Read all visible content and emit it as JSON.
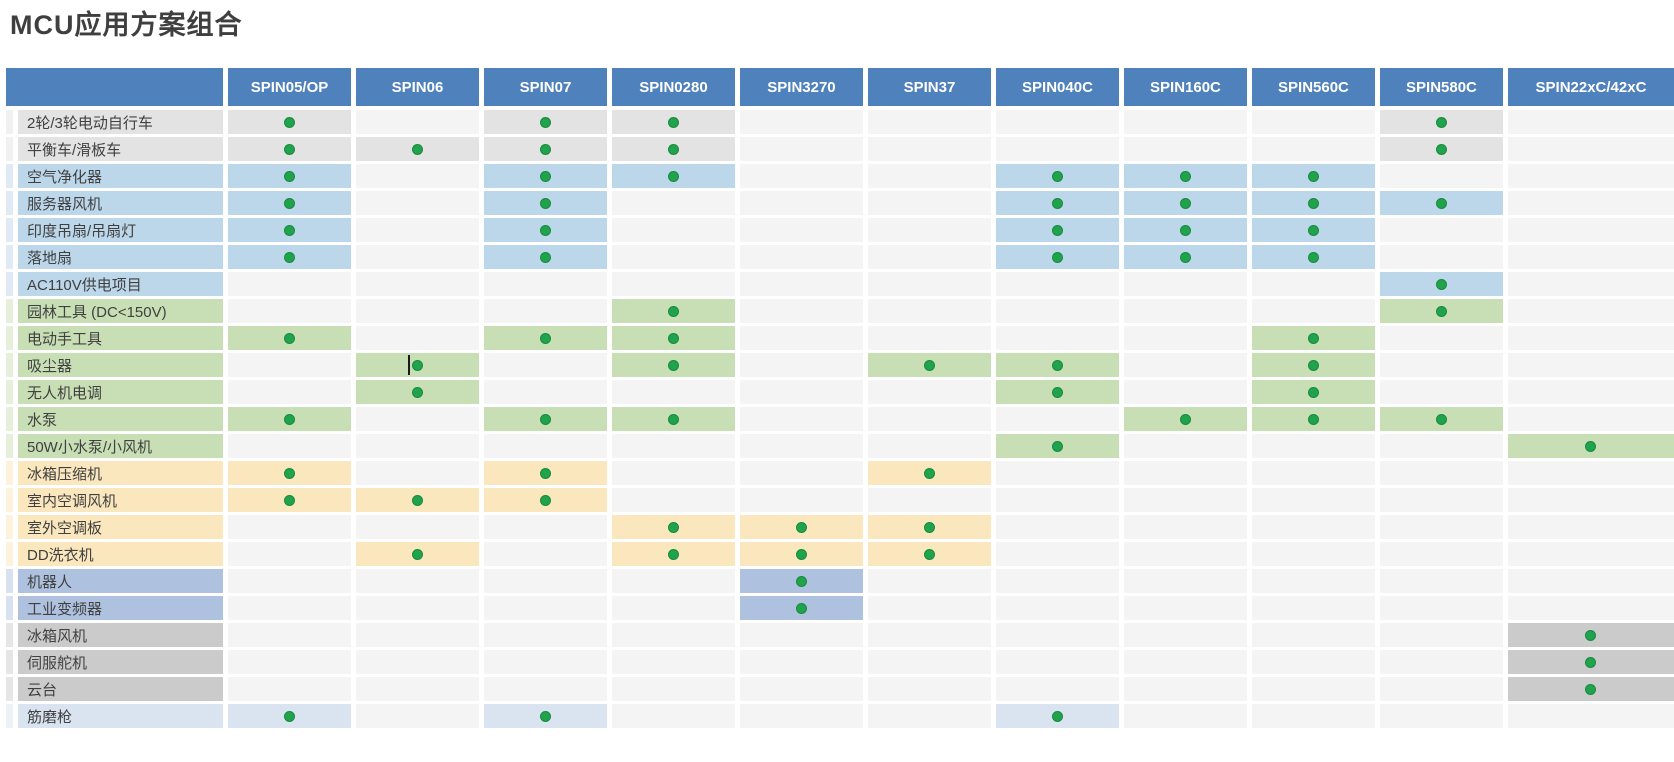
{
  "page_title": "MCU应用方案组合",
  "colors": {
    "header_bg": "#4f81bd",
    "header_text": "#ffffff",
    "cell_default": "#f4f4f4",
    "dot_green": "#21a24c",
    "dot_edge": "#178b3f",
    "title_text": "#3f3f3f",
    "categories": {
      "gray": {
        "main": "#e3e3e3",
        "tint": "#f1f1f1"
      },
      "blue": {
        "main": "#bcd6ea",
        "tint": "#dfeaf4"
      },
      "green": {
        "main": "#c8dfb5",
        "tint": "#e5efdb"
      },
      "yellow": {
        "main": "#fbe7bd",
        "tint": "#fdf3dd"
      },
      "periwinkle": {
        "main": "#aec2e0",
        "tint": "#d8e1ef"
      },
      "darkgray": {
        "main": "#cbcbcb",
        "tint": "#e6e6e6"
      },
      "lightblue": {
        "main": "#d9e4f0",
        "tint": "#edf2f8"
      }
    }
  },
  "table": {
    "columns": [
      "SPIN05/OP",
      "SPIN06",
      "SPIN07",
      "SPIN0280",
      "SPIN3270",
      "SPIN37",
      "SPIN040C",
      "SPIN160C",
      "SPIN560C",
      "SPIN580C",
      "SPIN22xC/42xC"
    ],
    "rows": [
      {
        "label": "2轮/3轮电动自行车",
        "category": "gray",
        "dots": [
          0,
          2,
          3,
          9
        ]
      },
      {
        "label": "平衡车/滑板车",
        "category": "gray",
        "dots": [
          0,
          1,
          2,
          3,
          9
        ]
      },
      {
        "label": "空气净化器",
        "category": "blue",
        "dots": [
          0,
          2,
          3,
          6,
          7,
          8
        ]
      },
      {
        "label": "服务器风机",
        "category": "blue",
        "dots": [
          0,
          2,
          6,
          7,
          8,
          9
        ]
      },
      {
        "label": "印度吊扇/吊扇灯",
        "category": "blue",
        "dots": [
          0,
          2,
          6,
          7,
          8
        ]
      },
      {
        "label": "落地扇",
        "category": "blue",
        "dots": [
          0,
          2,
          6,
          7,
          8
        ]
      },
      {
        "label": "AC110V供电项目",
        "category": "blue",
        "dots": [
          9
        ]
      },
      {
        "label": "园林工具 (DC<150V)",
        "category": "green",
        "dots": [
          3,
          9
        ]
      },
      {
        "label": "电动手工具",
        "category": "green",
        "dots": [
          0,
          2,
          3,
          8
        ]
      },
      {
        "label": "吸尘器",
        "category": "green",
        "dots": [
          1,
          3,
          5,
          6,
          8
        ],
        "caret_col": 1
      },
      {
        "label": "无人机电调",
        "category": "green",
        "dots": [
          1,
          6,
          8
        ]
      },
      {
        "label": "水泵",
        "category": "green",
        "dots": [
          0,
          2,
          3,
          7,
          8,
          9
        ]
      },
      {
        "label": "50W小水泵/小风机",
        "category": "green",
        "dots": [
          6,
          10
        ]
      },
      {
        "label": "冰箱压缩机",
        "category": "yellow",
        "dots": [
          0,
          2,
          5
        ]
      },
      {
        "label": "室内空调风机",
        "category": "yellow",
        "dots": [
          0,
          1,
          2
        ]
      },
      {
        "label": "室外空调板",
        "category": "yellow",
        "dots": [
          3,
          4,
          5
        ]
      },
      {
        "label": "DD洗衣机",
        "category": "yellow",
        "dots": [
          1,
          3,
          4,
          5
        ]
      },
      {
        "label": "机器人",
        "category": "periwinkle",
        "dots": [
          4
        ]
      },
      {
        "label": "工业变频器",
        "category": "periwinkle",
        "dots": [
          4
        ]
      },
      {
        "label": "冰箱风机",
        "category": "darkgray",
        "dots": [
          10
        ]
      },
      {
        "label": "伺服舵机",
        "category": "darkgray",
        "dots": [
          10
        ]
      },
      {
        "label": "云台",
        "category": "darkgray",
        "dots": [
          10
        ]
      },
      {
        "label": "筋磨枪",
        "category": "lightblue",
        "dots": [
          0,
          2,
          6
        ]
      }
    ]
  }
}
